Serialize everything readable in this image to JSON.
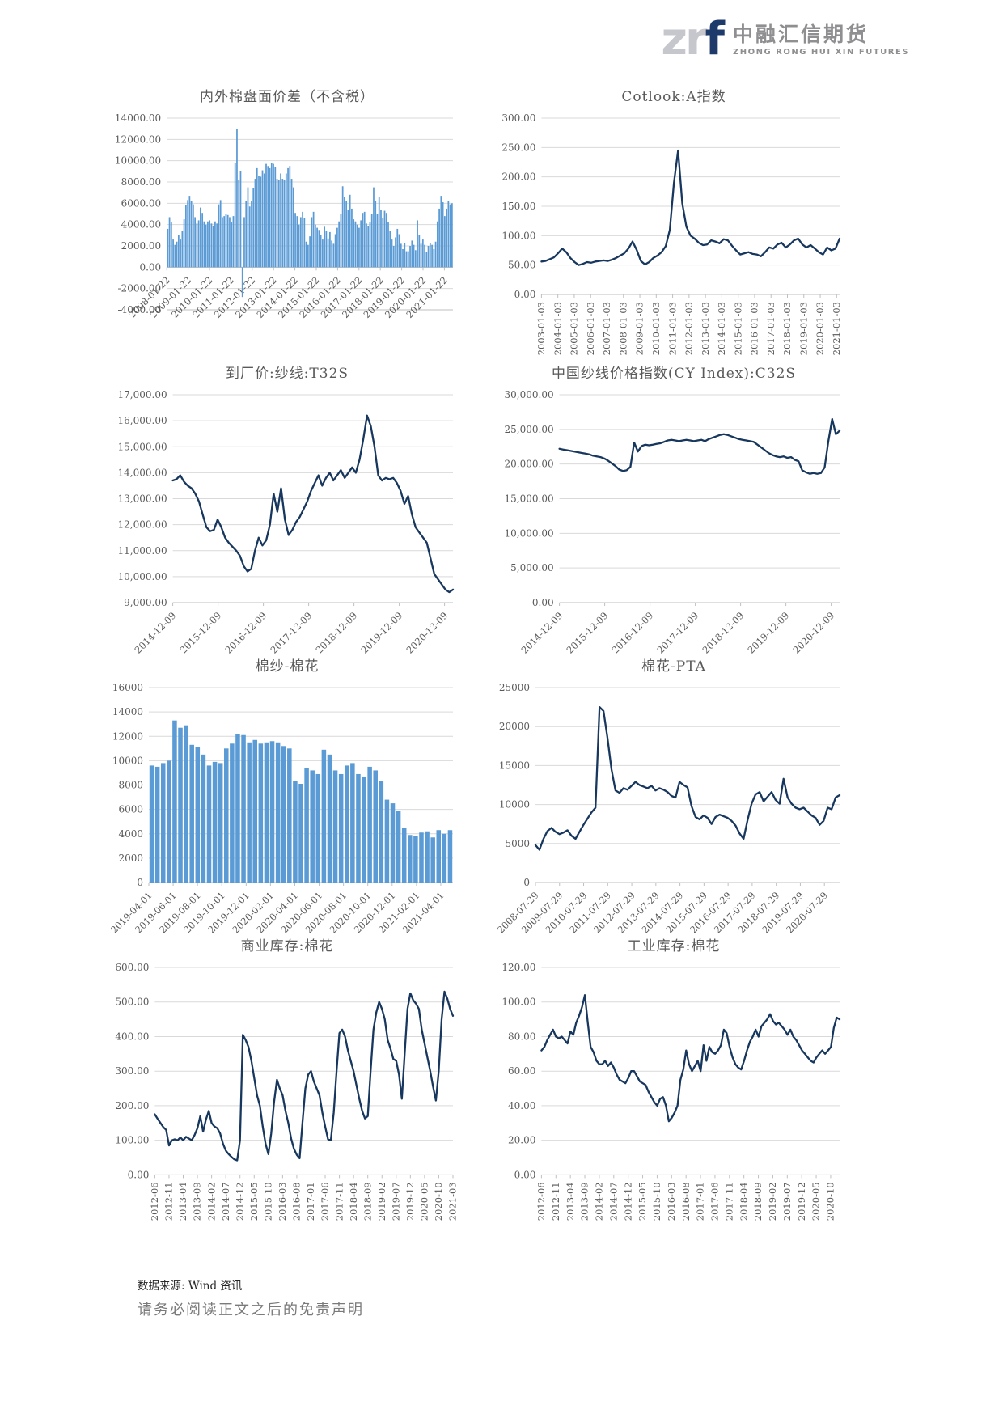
{
  "logo": {
    "mark_gray": "zr",
    "mark_blue": "f",
    "company_cn": "中融汇信期货",
    "company_en": "ZHONG RONG HUI XIN FUTURES"
  },
  "footer": {
    "source": "数据来源: Wind 资讯",
    "disclaimer": "请务必阅读正文之后的免责声明"
  },
  "colors": {
    "bar": "#5B9BD5",
    "line": "#17375E",
    "grid": "#D9D9D9",
    "axis": "#BFBFBF",
    "label": "#595959"
  },
  "chart_data": [
    {
      "type": "bar",
      "title": "内外棉盘面价差（不含税）",
      "ylim": [
        -4000,
        14000
      ],
      "ytick_step": 2000,
      "y_format": "plain2",
      "grid": true,
      "legend": "none",
      "x_label_rotation": "diagonal",
      "x_label_span": 0.97,
      "labels_at_zero": true,
      "x_labels": [
        "2008-01-22",
        "2009-01-22",
        "2010-01-22",
        "2011-01-22",
        "2012-01-22",
        "2013-01-22",
        "2014-01-22",
        "2015-01-22",
        "2016-01-22",
        "2017-01-22",
        "2018-01-22",
        "2019-01-22",
        "2020-01-22",
        "2021-01-22"
      ],
      "values": [
        3600,
        4700,
        4200,
        2600,
        2100,
        2400,
        3000,
        2600,
        3400,
        4500,
        5800,
        6300,
        6700,
        6200,
        5900,
        4700,
        4100,
        4400,
        5600,
        5100,
        4300,
        4000,
        4300,
        4400,
        4100,
        3900,
        4300,
        4100,
        5900,
        6300,
        4700,
        4800,
        5000,
        4900,
        4700,
        4200,
        4800,
        9800,
        13000,
        8200,
        9000,
        -2800,
        4700,
        6200,
        7500,
        5700,
        6200,
        7400,
        8300,
        9300,
        8600,
        8500,
        9100,
        8800,
        9700,
        9500,
        9300,
        9800,
        9700,
        9400,
        8300,
        8200,
        8800,
        8300,
        8200,
        8800,
        9300,
        9500,
        8300,
        7500,
        5100,
        4800,
        4000,
        4700,
        5200,
        4600,
        2400,
        2100,
        2900,
        4700,
        5200,
        4000,
        3700,
        3500,
        3000,
        2600,
        3800,
        3400,
        2700,
        3300,
        2500,
        2200,
        3100,
        3700,
        4300,
        5000,
        7600,
        6600,
        6200,
        5400,
        6800,
        5500,
        4500,
        4300,
        4000,
        3700,
        4400,
        5100,
        5200,
        4100,
        3900,
        4200,
        5000,
        7500,
        6200,
        5000,
        6600,
        5400,
        4600,
        5300,
        5100,
        4200,
        3400,
        2600,
        2000,
        2800,
        3600,
        3100,
        2200,
        1700,
        2300,
        1500,
        1500,
        2000,
        2500,
        2100,
        1600,
        4400,
        3000,
        2200,
        2600,
        2100,
        1400,
        2000,
        2300,
        2100,
        1700,
        2400,
        4300,
        5500,
        6700,
        6100,
        4800,
        5500,
        6200,
        5900,
        6000
      ]
    },
    {
      "type": "line",
      "title": "Cotlook:A指数",
      "ylim": [
        0,
        300
      ],
      "ytick_step": 50,
      "y_format": "plain2",
      "grid": true,
      "legend": "none",
      "x_label_rotation": "vertical",
      "x_label_span": 0.99,
      "x_labels": [
        "2003-01-03",
        "2004-01-03",
        "2005-01-03",
        "2006-01-03",
        "2007-01-03",
        "2008-01-03",
        "2009-01-03",
        "2010-01-03",
        "2011-01-03",
        "2012-01-03",
        "2013-01-03",
        "2014-01-03",
        "2015-01-03",
        "2016-01-03",
        "2017-01-03",
        "2018-01-03",
        "2019-01-03",
        "2020-01-03",
        "2021-01-03"
      ],
      "values": [
        56,
        57,
        60,
        63,
        70,
        78,
        72,
        62,
        55,
        50,
        52,
        55,
        54,
        56,
        57,
        58,
        57,
        59,
        62,
        66,
        70,
        78,
        90,
        76,
        57,
        51,
        55,
        62,
        66,
        72,
        82,
        110,
        190,
        245,
        155,
        115,
        100,
        95,
        88,
        84,
        85,
        92,
        90,
        87,
        94,
        92,
        83,
        75,
        68,
        70,
        72,
        69,
        68,
        65,
        72,
        80,
        78,
        85,
        88,
        80,
        85,
        92,
        95,
        85,
        80,
        84,
        78,
        72,
        68,
        80,
        75,
        78,
        95
      ]
    },
    {
      "type": "line",
      "title": "到厂价:纱线:T32S",
      "ylim": [
        9000,
        17000
      ],
      "ytick_step": 1000,
      "y_format": "comma2",
      "grid": true,
      "legend": "none",
      "x_label_rotation": "diagonal",
      "x_label_span": 0.97,
      "x_labels": [
        "2014-12-09",
        "2015-12-09",
        "2016-12-09",
        "2017-12-09",
        "2018-12-09",
        "2019-12-09",
        "2020-12-09"
      ],
      "values": [
        13700,
        13750,
        13900,
        13650,
        13500,
        13400,
        13200,
        12900,
        12400,
        11900,
        11750,
        11800,
        12200,
        11900,
        11500,
        11300,
        11150,
        11000,
        10800,
        10400,
        10200,
        10300,
        11000,
        11500,
        11200,
        11400,
        12000,
        13200,
        12500,
        13400,
        12200,
        11600,
        11800,
        12100,
        12300,
        12600,
        12900,
        13300,
        13600,
        13900,
        13500,
        13800,
        14000,
        13700,
        13900,
        14100,
        13800,
        14000,
        14200,
        14000,
        14500,
        15300,
        16200,
        15800,
        15000,
        13900,
        13700,
        13800,
        13750,
        13800,
        13600,
        13300,
        12800,
        13100,
        12400,
        11900,
        11700,
        11500,
        11300,
        10700,
        10100,
        9900,
        9700,
        9500,
        9400,
        9500
      ]
    },
    {
      "type": "line",
      "title": "中国纱线价格指数(CY Index):C32S",
      "ylim": [
        0,
        30000
      ],
      "ytick_step": 5000,
      "y_format": "comma2",
      "grid": true,
      "legend": "none",
      "x_label_rotation": "diagonal",
      "x_label_span": 0.97,
      "x_labels": [
        "2014-12-09",
        "2015-12-09",
        "2016-12-09",
        "2017-12-09",
        "2018-12-09",
        "2019-12-09",
        "2020-12-09"
      ],
      "values": [
        22200,
        22100,
        22000,
        21900,
        21800,
        21700,
        21600,
        21500,
        21400,
        21200,
        21100,
        21000,
        20800,
        20500,
        20100,
        19700,
        19200,
        19000,
        19100,
        19600,
        23100,
        21800,
        22600,
        22800,
        22700,
        22800,
        22900,
        23000,
        23200,
        23400,
        23500,
        23400,
        23300,
        23400,
        23500,
        23400,
        23300,
        23400,
        23500,
        23300,
        23600,
        23800,
        24000,
        24200,
        24300,
        24200,
        24000,
        23800,
        23600,
        23500,
        23400,
        23300,
        23200,
        22800,
        22400,
        22000,
        21600,
        21300,
        21100,
        21000,
        21100,
        20900,
        21000,
        20600,
        20400,
        19100,
        18800,
        18600,
        18700,
        18600,
        18700,
        19500,
        23300,
        26500,
        24300,
        24800
      ]
    },
    {
      "type": "bar",
      "title": "棉纱-棉花",
      "ylim": [
        0,
        16000
      ],
      "ytick_step": 2000,
      "y_format": "int",
      "grid": true,
      "legend": "none",
      "x_label_rotation": "diagonal",
      "x_label_span": 0.96,
      "x_labels": [
        "2019-04-01",
        "2019-06-01",
        "2019-08-01",
        "2019-10-01",
        "2019-12-01",
        "2020-02-01",
        "2020-04-01",
        "2020-06-01",
        "2020-08-01",
        "2020-10-01",
        "2020-12-01",
        "2021-02-01",
        "2021-04-01"
      ],
      "values": [
        9600,
        9500,
        9800,
        10000,
        13300,
        12700,
        12900,
        11300,
        11100,
        10500,
        9600,
        9900,
        9800,
        11000,
        11400,
        12200,
        12100,
        11500,
        11700,
        11400,
        11500,
        11600,
        11500,
        11200,
        11000,
        8300,
        8100,
        9400,
        9200,
        8900,
        10900,
        10500,
        9200,
        8900,
        9600,
        9800,
        8900,
        8700,
        9500,
        9200,
        8300,
        6800,
        6500,
        5900,
        4500,
        3900,
        3800,
        4100,
        4200,
        3700,
        4300,
        4000,
        4300
      ]
    },
    {
      "type": "line",
      "title": "棉花-PTA",
      "ylim": [
        0,
        25000
      ],
      "ytick_step": 5000,
      "y_format": "int",
      "grid": true,
      "legend": "none",
      "x_label_rotation": "diagonal",
      "x_label_span": 0.95,
      "x_labels": [
        "2008-07-29",
        "2009-07-29",
        "2010-07-29",
        "2011-07-29",
        "2012-07-29",
        "2013-07-29",
        "2014-07-29",
        "2015-07-29",
        "2016-07-29",
        "2017-07-29",
        "2018-07-29",
        "2019-07-29",
        "2020-07-29"
      ],
      "values": [
        4800,
        4200,
        5600,
        6600,
        7000,
        6500,
        6200,
        6400,
        6700,
        6000,
        5600,
        6500,
        7400,
        8200,
        9000,
        9600,
        22500,
        22000,
        18500,
        14500,
        11800,
        11500,
        12100,
        11900,
        12400,
        12900,
        12500,
        12300,
        12100,
        12400,
        11800,
        12100,
        11900,
        11600,
        11100,
        10900,
        12900,
        12500,
        12200,
        9800,
        8400,
        8100,
        8600,
        8300,
        7500,
        8400,
        8700,
        8500,
        8300,
        7900,
        7300,
        6300,
        5600,
        8000,
        10100,
        11300,
        11600,
        10400,
        11000,
        11600,
        10600,
        10100,
        13300,
        10900,
        10100,
        9600,
        9400,
        9600,
        9100,
        8600,
        8300,
        7400,
        7900,
        9600,
        9400,
        10900,
        11200
      ]
    },
    {
      "type": "line",
      "title": "商业库存:棉花",
      "ylim": [
        0,
        600
      ],
      "ytick_step": 100,
      "y_format": "plain2",
      "grid": true,
      "legend": "none",
      "x_label_rotation": "vertical",
      "x_label_span": 1.0,
      "x_labels": [
        "2012-06",
        "2012-11",
        "2013-04",
        "2013-09",
        "2014-02",
        "2014-07",
        "2014-12",
        "2015-05",
        "2015-10",
        "2016-03",
        "2016-08",
        "2017-01",
        "2017-06",
        "2017-11",
        "2018-04",
        "2018-09",
        "2019-02",
        "2019-07",
        "2019-12",
        "2020-05",
        "2020-10",
        "2021-03"
      ],
      "values": [
        175,
        162,
        150,
        138,
        130,
        85,
        100,
        103,
        100,
        108,
        100,
        110,
        105,
        100,
        115,
        135,
        170,
        125,
        160,
        185,
        150,
        140,
        135,
        120,
        90,
        70,
        60,
        52,
        45,
        42,
        100,
        405,
        390,
        370,
        330,
        280,
        230,
        200,
        140,
        90,
        60,
        120,
        210,
        275,
        250,
        230,
        185,
        150,
        105,
        75,
        58,
        48,
        150,
        250,
        290,
        300,
        270,
        250,
        230,
        180,
        140,
        103,
        100,
        180,
        300,
        410,
        420,
        400,
        360,
        330,
        300,
        260,
        220,
        185,
        163,
        170,
        300,
        420,
        470,
        500,
        480,
        450,
        390,
        365,
        335,
        330,
        290,
        220,
        350,
        480,
        525,
        505,
        495,
        480,
        420,
        380,
        340,
        300,
        255,
        215,
        300,
        450,
        530,
        510,
        480,
        460
      ]
    },
    {
      "type": "line",
      "title": "工业库存:棉花",
      "ylim": [
        0,
        120
      ],
      "ytick_step": 20,
      "y_format": "plain2",
      "grid": true,
      "legend": "none",
      "x_label_rotation": "vertical",
      "x_label_span": 0.97,
      "x_labels": [
        "2012-06",
        "2012-11",
        "2013-04",
        "2013-09",
        "2014-02",
        "2014-07",
        "2014-12",
        "2015-05",
        "2015-10",
        "2016-03",
        "2016-08",
        "2017-01",
        "2017-06",
        "2017-11",
        "2018-04",
        "2018-09",
        "2019-02",
        "2019-07",
        "2019-12",
        "2020-05",
        "2020-10"
      ],
      "values": [
        72,
        74,
        78,
        81,
        84,
        80,
        79,
        80,
        78,
        76,
        83,
        81,
        88,
        92,
        97,
        104,
        88,
        74,
        71,
        66,
        64,
        64,
        66,
        63,
        65,
        62,
        58,
        55,
        54,
        53,
        56,
        60,
        60,
        57,
        54,
        53,
        52,
        48,
        45,
        42,
        40,
        44,
        45,
        40,
        31,
        33,
        36,
        40,
        55,
        61,
        72,
        64,
        60,
        63,
        66,
        60,
        75,
        66,
        74,
        71,
        70,
        72,
        75,
        84,
        82,
        74,
        68,
        64,
        62,
        61,
        66,
        72,
        77,
        80,
        84,
        80,
        86,
        88,
        90,
        93,
        89,
        87,
        88,
        86,
        84,
        81,
        84,
        80,
        78,
        75,
        72,
        70,
        68,
        66,
        65,
        68,
        70,
        72,
        70,
        72,
        74,
        85,
        91,
        90
      ]
    }
  ]
}
